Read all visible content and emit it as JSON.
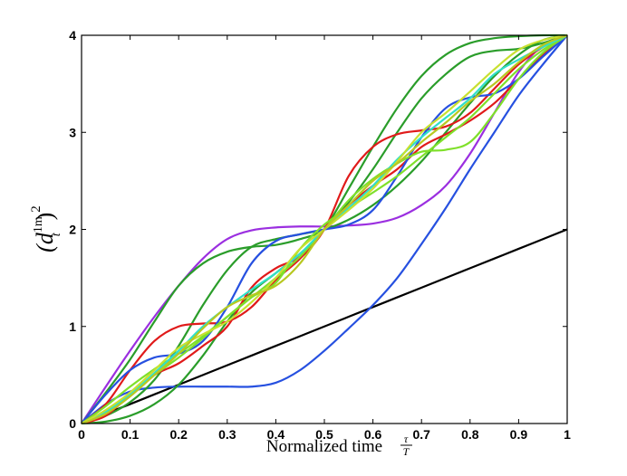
{
  "chart_data": {
    "type": "line",
    "title": "",
    "xlabel": "Normalized time",
    "xlabel_math_num": "τ",
    "xlabel_math_den": "T",
    "ylabel_base": "(d",
    "ylabel_sup": "1m",
    "ylabel_sub": "t",
    "ylabel_close": ")",
    "ylabel_power": "2",
    "xlim": [
      0,
      1
    ],
    "ylim": [
      0,
      4
    ],
    "xticks": [
      {
        "value": 0,
        "label": "0"
      },
      {
        "value": 0.1,
        "label": "0.1"
      },
      {
        "value": 0.2,
        "label": "0.2"
      },
      {
        "value": 0.3,
        "label": "0.3"
      },
      {
        "value": 0.4,
        "label": "0.4"
      },
      {
        "value": 0.5,
        "label": "0.5"
      },
      {
        "value": 0.6,
        "label": "0.6"
      },
      {
        "value": 0.7,
        "label": "0.7"
      },
      {
        "value": 0.8,
        "label": "0.8"
      },
      {
        "value": 0.9,
        "label": "0.9"
      },
      {
        "value": 1,
        "label": "1"
      }
    ],
    "yticks": [
      {
        "value": 0,
        "label": "0"
      },
      {
        "value": 1,
        "label": "1"
      },
      {
        "value": 2,
        "label": "2"
      },
      {
        "value": 3,
        "label": "3"
      },
      {
        "value": 4,
        "label": "4"
      }
    ],
    "grid": false,
    "x": [
      0,
      0.05,
      0.1,
      0.15,
      0.2,
      0.25,
      0.3,
      0.35,
      0.4,
      0.45,
      0.5,
      0.55,
      0.6,
      0.65,
      0.7,
      0.75,
      0.8,
      0.85,
      0.9,
      0.95,
      1
    ],
    "series": [
      {
        "color": "#000000",
        "values": [
          0,
          0.1,
          0.2,
          0.3,
          0.4,
          0.5,
          0.6,
          0.7,
          0.8,
          0.9,
          1.0,
          1.1,
          1.2,
          1.3,
          1.4,
          1.5,
          1.6,
          1.7,
          1.8,
          1.9,
          2.0
        ]
      },
      {
        "color": "#2650e0",
        "values": [
          0,
          0.2,
          0.33,
          0.37,
          0.38,
          0.38,
          0.38,
          0.38,
          0.42,
          0.55,
          0.75,
          0.98,
          1.22,
          1.5,
          1.85,
          2.22,
          2.62,
          3.0,
          3.38,
          3.7,
          4.0
        ]
      },
      {
        "color": "#9b2fe0",
        "values": [
          0,
          0.38,
          0.75,
          1.1,
          1.42,
          1.7,
          1.9,
          1.99,
          2.02,
          2.03,
          2.03,
          2.04,
          2.06,
          2.12,
          2.25,
          2.45,
          2.78,
          3.2,
          3.62,
          3.9,
          4.0
        ]
      },
      {
        "color": "#2a9d2a",
        "values": [
          0,
          0.32,
          0.66,
          1.05,
          1.42,
          1.65,
          1.77,
          1.82,
          1.84,
          1.9,
          2.0,
          2.28,
          2.62,
          3.0,
          3.35,
          3.6,
          3.78,
          3.84,
          3.86,
          3.92,
          4.0
        ]
      },
      {
        "color": "#2a9d2a",
        "values": [
          0,
          0.02,
          0.08,
          0.2,
          0.4,
          0.7,
          1.05,
          1.35,
          1.55,
          1.75,
          2.0,
          2.42,
          2.85,
          3.25,
          3.58,
          3.8,
          3.92,
          3.97,
          3.99,
          4.0,
          4.0
        ]
      },
      {
        "color": "#2a9d2a",
        "values": [
          0,
          0.08,
          0.22,
          0.45,
          0.8,
          1.22,
          1.58,
          1.82,
          1.9,
          1.95,
          2.0,
          2.1,
          2.25,
          2.45,
          2.7,
          3.0,
          3.3,
          3.58,
          3.8,
          3.95,
          4.0
        ]
      },
      {
        "color": "#e01a1a",
        "values": [
          0,
          0.2,
          0.55,
          0.85,
          1.0,
          1.03,
          1.05,
          1.2,
          1.48,
          1.7,
          2.0,
          2.55,
          2.85,
          2.98,
          3.02,
          3.06,
          3.2,
          3.45,
          3.7,
          3.88,
          4.0
        ]
      },
      {
        "color": "#e01a1a",
        "values": [
          0,
          0.08,
          0.3,
          0.5,
          0.62,
          0.8,
          1.0,
          1.4,
          1.6,
          1.72,
          2.0,
          2.25,
          2.45,
          2.62,
          2.85,
          2.98,
          3.12,
          3.3,
          3.55,
          3.8,
          4.0
        ]
      },
      {
        "color": "#2650e0",
        "values": [
          0,
          0.3,
          0.55,
          0.68,
          0.72,
          0.85,
          1.2,
          1.65,
          1.88,
          1.95,
          2.0,
          2.05,
          2.2,
          2.55,
          2.95,
          3.25,
          3.36,
          3.4,
          3.55,
          3.78,
          4.0
        ]
      },
      {
        "color": "#7fe02a",
        "values": [
          0,
          0.12,
          0.3,
          0.5,
          0.68,
          0.88,
          1.1,
          1.3,
          1.45,
          1.8,
          2.05,
          2.22,
          2.38,
          2.55,
          2.75,
          2.95,
          3.15,
          3.4,
          3.65,
          3.85,
          4.0
        ]
      },
      {
        "color": "#7fe02a",
        "values": [
          0,
          0.18,
          0.38,
          0.56,
          0.72,
          0.9,
          1.1,
          1.3,
          1.5,
          1.72,
          2.0,
          2.3,
          2.52,
          2.68,
          2.8,
          2.82,
          2.9,
          3.2,
          3.55,
          3.82,
          4.0
        ]
      },
      {
        "color": "#30e0c8",
        "values": [
          0,
          0.12,
          0.3,
          0.52,
          0.75,
          1.0,
          1.2,
          1.38,
          1.55,
          1.75,
          2.0,
          2.22,
          2.45,
          2.72,
          2.95,
          3.15,
          3.35,
          3.6,
          3.75,
          3.88,
          4.0
        ]
      },
      {
        "color": "#c8e030",
        "values": [
          0,
          0.14,
          0.32,
          0.55,
          0.78,
          0.92,
          1.05,
          1.25,
          1.5,
          1.8,
          2.0,
          2.2,
          2.42,
          2.7,
          3.0,
          3.2,
          3.42,
          3.65,
          3.85,
          3.95,
          4.0
        ]
      },
      {
        "color": "#b8c820",
        "values": [
          0,
          0.1,
          0.28,
          0.5,
          0.72,
          0.98,
          1.2,
          1.32,
          1.42,
          1.65,
          2.0,
          2.25,
          2.5,
          2.68,
          2.9,
          3.1,
          3.32,
          3.5,
          3.72,
          3.9,
          4.0
        ]
      }
    ]
  }
}
